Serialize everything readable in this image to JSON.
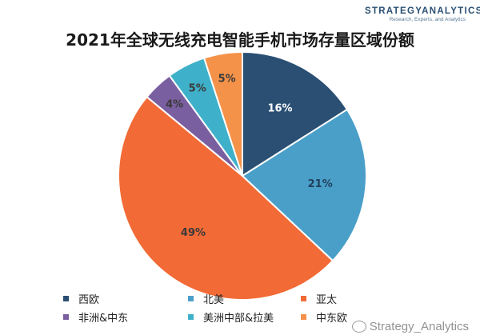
{
  "logo": {
    "main": "STRATEGYANALYTICS",
    "sub": "Research, Experts, and Analytics"
  },
  "watermark": {
    "text": "Strategy_Analytics"
  },
  "chart_data": {
    "type": "pie",
    "title": "2021年全球无线充电智能手机市场存量区域份额",
    "legend_position": "bottom",
    "slices": [
      {
        "label": "西欧",
        "value": 16,
        "display": "16%",
        "color": "#2a4f73",
        "label_color": "#ffffff"
      },
      {
        "label": "北美",
        "value": 21,
        "display": "21%",
        "color": "#4a9fc9",
        "label_color": "#1f3f5c"
      },
      {
        "label": "亚太",
        "value": 49,
        "display": "49%",
        "color": "#f26a35",
        "label_color": "#3a3a3a"
      },
      {
        "label": "非洲&中东",
        "value": 4,
        "display": "4%",
        "color": "#7a5fa0",
        "label_color": "#3a3a3a"
      },
      {
        "label": "美洲中部&拉美",
        "value": 5,
        "display": "5%",
        "color": "#3fb0c9",
        "label_color": "#3a3a3a"
      },
      {
        "label": "中东欧",
        "value": 5,
        "display": "5%",
        "color": "#f4924a",
        "label_color": "#3a3a3a"
      }
    ]
  }
}
